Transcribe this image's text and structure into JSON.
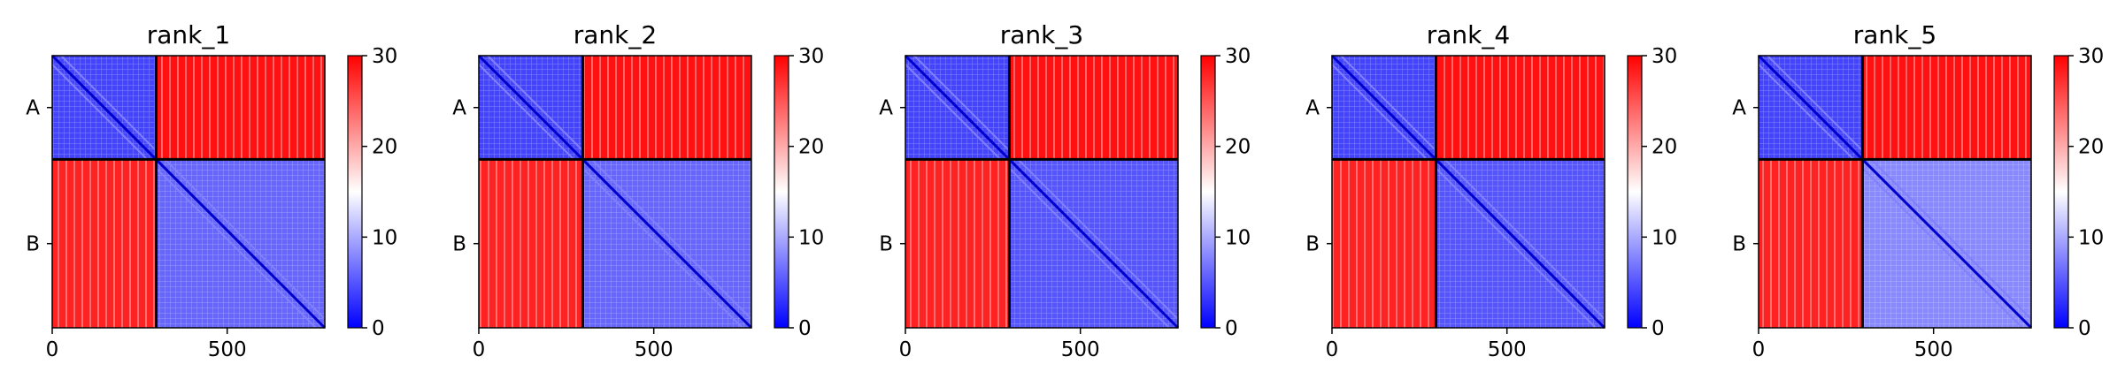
{
  "chart_data": {
    "type": "heatmap",
    "colorbar": {
      "min": 0,
      "max": 30,
      "ticks": [
        0,
        10,
        20,
        30
      ],
      "colormap": "bwr",
      "colors": [
        "#0000ff",
        "#ffffff",
        "#ff0000"
      ]
    },
    "chains": [
      {
        "label": "A",
        "start": 0,
        "end": 297
      },
      {
        "label": "B",
        "start": 297,
        "end": 779
      }
    ],
    "x_ticks": [
      0,
      500
    ],
    "xlim": [
      0,
      779
    ],
    "panels": [
      {
        "title": "rank_1",
        "pae": {
          "A-A": 4,
          "A-B": 29,
          "B-A": 28,
          "B-B": 6
        }
      },
      {
        "title": "rank_2",
        "pae": {
          "A-A": 4,
          "A-B": 29,
          "B-A": 28,
          "B-B": 6
        }
      },
      {
        "title": "rank_3",
        "pae": {
          "A-A": 4,
          "A-B": 29,
          "B-A": 28,
          "B-B": 5
        }
      },
      {
        "title": "rank_4",
        "pae": {
          "A-A": 4,
          "A-B": 29,
          "B-A": 28,
          "B-B": 5
        }
      },
      {
        "title": "rank_5",
        "pae": {
          "A-A": 4,
          "A-B": 29,
          "B-A": 28,
          "B-B": 8
        }
      }
    ]
  }
}
